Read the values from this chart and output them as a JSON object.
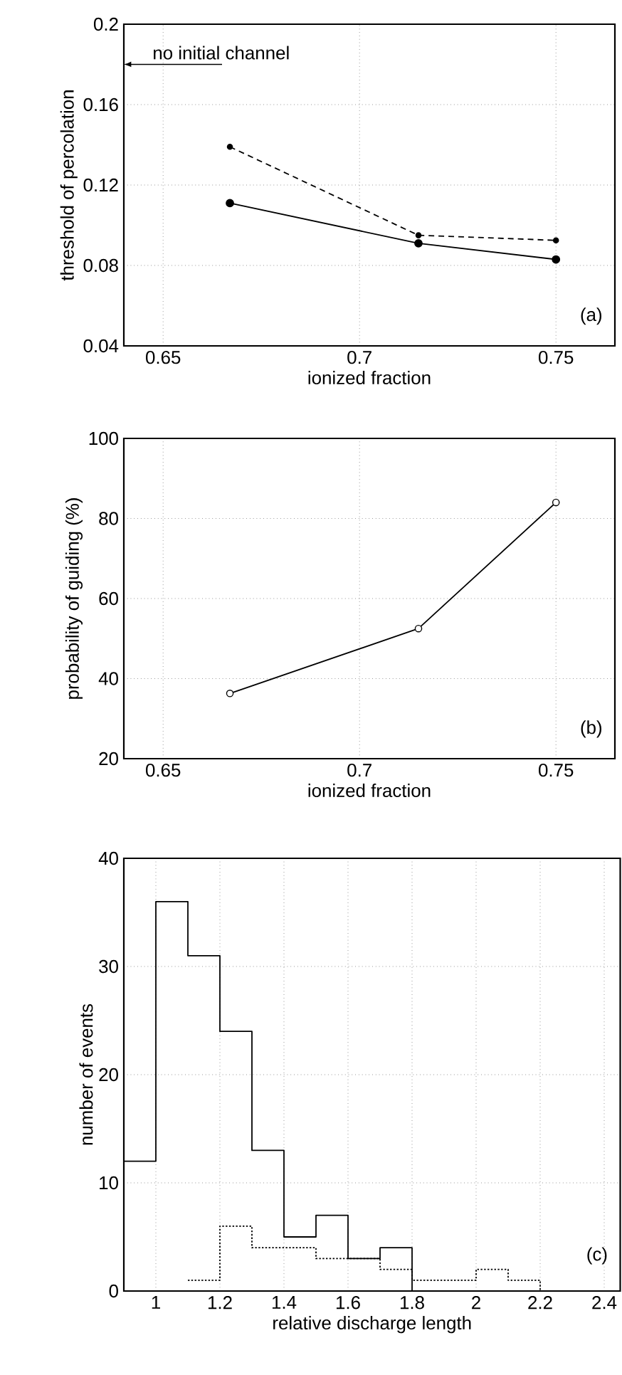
{
  "chart_data": [
    {
      "type": "line",
      "xlabel": "ionized fraction",
      "ylabel": "threshold of percolation",
      "xlim": [
        0.64,
        0.765
      ],
      "ylim": [
        0.04,
        0.2
      ],
      "xticks": [
        0.65,
        0.7,
        0.75
      ],
      "yticks": [
        0.04,
        0.08,
        0.12,
        0.16,
        0.2
      ],
      "grid": true,
      "marker": "circle",
      "series": [
        {
          "color": "#000000",
          "line_style": "solid",
          "x": [
            0.667,
            0.715,
            0.75
          ],
          "values": [
            0.111,
            0.091,
            0.083
          ]
        },
        {
          "color": "#000000",
          "line_style": "dashed",
          "x": [
            0.667,
            0.715,
            0.75
          ],
          "values": [
            0.139,
            0.095,
            0.0925
          ]
        }
      ],
      "annotations": [
        "no initial channel",
        "(a)"
      ]
    },
    {
      "type": "line",
      "xlabel": "ionized fraction",
      "ylabel": "probability of guiding (%)",
      "xlim": [
        0.64,
        0.765
      ],
      "ylim": [
        20,
        100
      ],
      "xticks": [
        0.65,
        0.7,
        0.75
      ],
      "yticks": [
        20,
        40,
        60,
        80,
        100
      ],
      "grid": true,
      "marker": "circle",
      "series": [
        {
          "color": "#000000",
          "line_style": "solid",
          "x": [
            0.667,
            0.715,
            0.75
          ],
          "values": [
            36.3,
            52.5,
            84
          ]
        }
      ],
      "annotations": [
        "(b)"
      ]
    },
    {
      "type": "step",
      "xlabel": "relative discharge length",
      "ylabel": "number of events",
      "xlim": [
        0.9,
        2.45
      ],
      "ylim": [
        0,
        40
      ],
      "xticks": [
        1,
        1.2,
        1.4,
        1.6,
        1.8,
        2,
        2.2,
        2.4
      ],
      "yticks": [
        0,
        10,
        20,
        30,
        40
      ],
      "grid": true,
      "series": [
        {
          "color": "#000000",
          "line_style": "solid",
          "x": [
            0.9,
            1.0,
            1.1,
            1.2,
            1.3,
            1.4,
            1.5,
            1.6,
            1.7,
            1.8
          ],
          "values": [
            12,
            36,
            31,
            24,
            13,
            5,
            7,
            3,
            4,
            0
          ]
        },
        {
          "color": "#000000",
          "line_style": "dotted",
          "x": [
            1.1,
            1.2,
            1.3,
            1.4,
            1.5,
            1.6,
            1.7,
            1.8,
            1.9,
            2.0,
            2.1,
            2.2
          ],
          "values": [
            1,
            6,
            4,
            4,
            3,
            3,
            2,
            1,
            1,
            2,
            1,
            0
          ]
        }
      ],
      "annotations": [
        "(c)"
      ]
    }
  ]
}
